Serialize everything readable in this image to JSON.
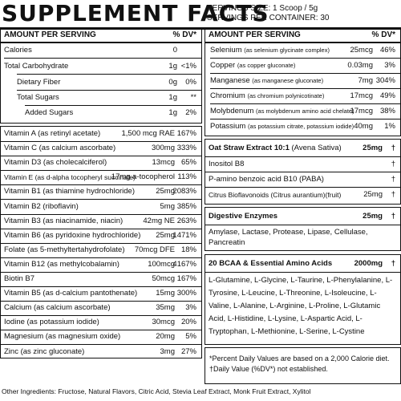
{
  "header": {
    "title": "SUPPLEMENT FACTS",
    "serving_size": "SERVINGS SIZE: 1 Scoop / 5g",
    "servings_per_container": "SERVINGS PER CONTAINER: 30"
  },
  "columns": {
    "amount_per_serving": "AMOUNT PER SERVING",
    "dv": "% DV*"
  },
  "macros": [
    {
      "name": "Calories",
      "amount": "0",
      "dv": ""
    },
    {
      "name": "Total Carbohydrate",
      "amount": "1g",
      "dv": "<1%"
    },
    {
      "name": "Dietary Fiber",
      "amount": "0g",
      "dv": "0%"
    },
    {
      "name": "Total Sugars",
      "amount": "1g",
      "dv": "**"
    },
    {
      "name": "Added Sugars",
      "amount": "1g",
      "dv": "2%"
    }
  ],
  "vitamins": [
    {
      "name": "Vitamin A (as retinyl acetate)",
      "amount": "1,500 mcg RAE",
      "dv": "167%"
    },
    {
      "name": "Vitamin C (as calcium ascorbate)",
      "amount": "300mg",
      "dv": "333%"
    },
    {
      "name": "Vitamin D3 (as cholecalciferol)",
      "amount": "13mcg",
      "dv": "65%"
    },
    {
      "name": "Vitamin E (as d-alpha tocopheryl succinate)",
      "amount": "17mg a-tocopherol",
      "dv": "113%"
    },
    {
      "name": "Vitamin B1 (as thiamine hydrochloride)",
      "amount": "25mg",
      "dv": "2083%"
    },
    {
      "name": "Vitamin B2 (riboflavin)",
      "amount": "5mg",
      "dv": "385%"
    },
    {
      "name": "Vitamin B3 (as niacinamide, niacin)",
      "amount": "42mg NE",
      "dv": "263%"
    },
    {
      "name": "Vitamin B6 (as pyridoxine hydrochloride)",
      "amount": "25mg",
      "dv": "1471%"
    },
    {
      "name": "Folate (as 5-methyltertahydrofolate)",
      "amount": "70mcg DFE",
      "dv": "18%"
    },
    {
      "name": "Vitamin B12 (as methylcobalamin)",
      "amount": "100mcg",
      "dv": "4167%"
    },
    {
      "name": "Biotin B7",
      "amount": "50mcg",
      "dv": "167%"
    },
    {
      "name": "Vitamin B5 (as d-calcium pantothenate)",
      "amount": "15mg",
      "dv": "300%"
    },
    {
      "name": "Calcium (as calcium ascorbate)",
      "amount": "35mg",
      "dv": "3%"
    },
    {
      "name": "Iodine (as potassium iodide)",
      "amount": "30mcg",
      "dv": "20%"
    },
    {
      "name": "Magnesium (as magnesium oxide)",
      "amount": "20mg",
      "dv": "5%"
    },
    {
      "name": "Zinc (as zinc gluconate)",
      "amount": "3mg",
      "dv": "27%"
    }
  ],
  "minerals": [
    {
      "name": "Selenium",
      "source": "(as selenium glycinate complex)",
      "amount": "25mcg",
      "dv": "46%"
    },
    {
      "name": "Copper",
      "source": "(as copper gluconate)",
      "amount": "0.03mg",
      "dv": "3%"
    },
    {
      "name": "Manganese",
      "source": "(as manganese gluconate)",
      "amount": "7mg",
      "dv": "304%"
    },
    {
      "name": "Chromium",
      "source": "(as chromium polynicotinate)",
      "amount": "17mcg",
      "dv": "49%"
    },
    {
      "name": "Molybdenum",
      "source": "(as molybdenum amino acid chelate)",
      "amount": "17mcg",
      "dv": "38%"
    },
    {
      "name": "Potassium",
      "source": "(as potassium citrate, potassium iodide)",
      "amount": "40mg",
      "dv": "1%"
    }
  ],
  "blend": {
    "title_name": "Oat Straw Extract 10:1",
    "title_source": "(Avena Sativa)",
    "title_amount": "25mg",
    "title_dv": "†",
    "items": [
      {
        "name": "Inositol B8",
        "dv": "†"
      },
      {
        "name": "P-amino benzoic acid B10 (PABA)",
        "dv": "†"
      },
      {
        "name": "Citrus Bioflavonoids (Citrus aurantium)(fruit)",
        "amount": "25mg",
        "dv": "†"
      }
    ]
  },
  "enzymes": {
    "name": "Digestive Enzymes",
    "amount": "25mg",
    "dv": "†",
    "text": "Amylase, Lactase, Protease, Lipase, Cellulase, Pancreatin"
  },
  "bcaa": {
    "name": "20 BCAA & Essential Amino Acids",
    "amount": "2000mg",
    "dv": "†",
    "text": "L-Glutamine, L-Glycine, L-Taurine, L-Phenylalanine, L-Tyrosine, L-Leucine, L-Threonine, L-Isoleucine, L-Valine, L-Alanine, L-Arginine, L-Proline, L-Glutamic Acid, L-Histidine, L-Lysine, L-Aspartic Acid, L-Tryptophan, L-Methionine, L-Serine, L-Cystine"
  },
  "footnote": {
    "line1": "*Percent Daily Values are based on a 2,000 Calorie diet.",
    "line2": "†Daily Value (%DV*) not established."
  },
  "other_ingredients": "Other Ingredients: Fructose, Natural Flavors, Citric Acid, Stevia Leaf Extract, Monk Fruit Extract, Xylitol"
}
